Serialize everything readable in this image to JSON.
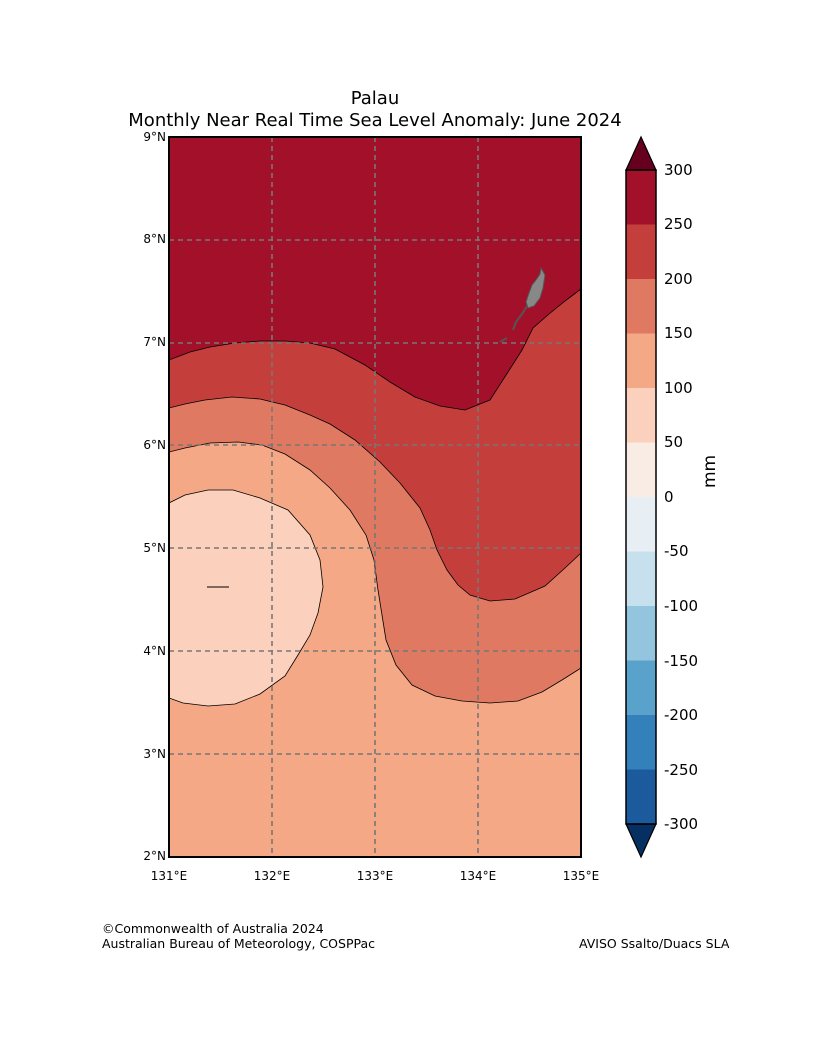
{
  "title": {
    "line1": "Palau",
    "line2": "Monthly Near Real Time Sea Level Anomaly: June 2024"
  },
  "map": {
    "region": "Palau",
    "lat_labels": [
      "9°N",
      "8°N",
      "7°N",
      "6°N",
      "5°N",
      "4°N",
      "3°N",
      "2°N"
    ],
    "lon_labels": [
      "131°E",
      "132°E",
      "133°E",
      "134°E",
      "135°E"
    ],
    "gridlines": true
  },
  "colorbar": {
    "unit": "mm",
    "ticks": [
      "300",
      "250",
      "200",
      "150",
      "100",
      "50",
      "0",
      "-50",
      "-100",
      "-150",
      "-200",
      "-250",
      "-300"
    ],
    "colors": [
      "#053061",
      "#1b5a9c",
      "#3480bb",
      "#58a2cb",
      "#94c5df",
      "#c6e0ee",
      "#e7eff4",
      "#f8ece4",
      "#fbd1bd",
      "#f4a886",
      "#e07962",
      "#c43e3c",
      "#a21129",
      "#67001f"
    ]
  },
  "footer": {
    "copyright": "©Commonwealth of Australia 2024",
    "agency": "Australian Bureau of Meteorology, COSPPac",
    "source": "AVISO Ssalto/Duacs SLA"
  }
}
